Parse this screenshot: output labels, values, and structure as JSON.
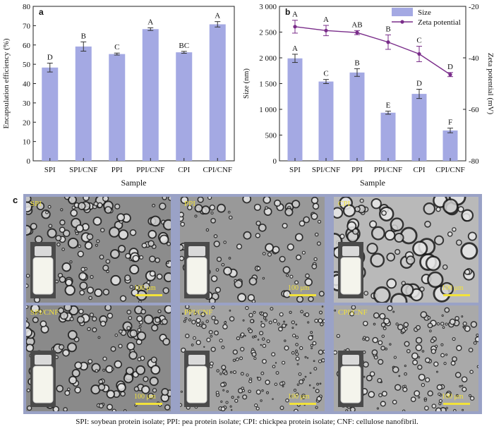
{
  "chart_data": [
    {
      "panel": "a",
      "type": "bar",
      "ylabel": "Encapsulation efficiency (%)",
      "xlabel": "Sample",
      "categories": [
        "SPI",
        "SPI/CNF",
        "PPI",
        "PPI/CNF",
        "CPI",
        "CPI/CNF"
      ],
      "values": [
        48.3,
        59.2,
        55.3,
        68.2,
        56.2,
        70.7
      ],
      "errors": [
        2.3,
        2.4,
        0.5,
        0.7,
        0.5,
        1.4
      ],
      "letters": [
        "D",
        "B",
        "C",
        "A",
        "BC",
        "A"
      ],
      "ylim": [
        0,
        80
      ],
      "yticks": [
        0,
        10,
        20,
        30,
        40,
        50,
        60,
        70,
        80
      ],
      "bar_color": "#a4a9e3"
    },
    {
      "panel": "b",
      "type": "bar+line",
      "xlabel": "Sample",
      "ylabel_left": "Size (nm)",
      "ylabel_right": "Zeta potential (mV)",
      "categories": [
        "SPI",
        "SPI/CNF",
        "PPI",
        "PPI/CNF",
        "CPI",
        "CPI/CNF"
      ],
      "size_series": {
        "name": "Size",
        "values": [
          1990,
          1540,
          1715,
          935,
          1300,
          590
        ],
        "errors": [
          80,
          40,
          75,
          30,
          90,
          45
        ],
        "letters": [
          "A",
          "C",
          "B",
          "E",
          "D",
          "F"
        ],
        "color": "#a4a9e3"
      },
      "zeta_series": {
        "name": "Zeta potential",
        "values": [
          -27.9,
          -29.4,
          -30.2,
          -33.9,
          -38.5,
          -46.5
        ],
        "errors": [
          2.5,
          2.0,
          0.8,
          2.8,
          3.0,
          0.8
        ],
        "letters": [
          "A",
          "A",
          "AB",
          "B",
          "C",
          "D"
        ],
        "color": "#7a2d8a"
      },
      "ylim_left": [
        0,
        3000
      ],
      "yticks_left": [
        "0",
        "500",
        "1 000",
        "1 500",
        "2 000",
        "2 500",
        "3 000"
      ],
      "yticks_left_values": [
        0,
        500,
        1000,
        1500,
        2000,
        2500,
        3000
      ],
      "ylim_right": [
        -80,
        -20
      ],
      "yticks_right": [
        -80,
        -60,
        -40,
        -20
      ]
    }
  ],
  "panel_labels": {
    "a": "a",
    "b": "b",
    "c": "c"
  },
  "micrographs": [
    {
      "label": "SPI",
      "scale": "100 μm"
    },
    {
      "label": "PPI",
      "scale": "100 μm"
    },
    {
      "label": "CPI",
      "scale": "100 μm"
    },
    {
      "label": "SPI/CNF",
      "scale": "100 μm"
    },
    {
      "label": "PPI/CNF",
      "scale": "100 μm"
    },
    {
      "label": "CPI/CNF",
      "scale": "100 μm"
    }
  ],
  "caption": "SPI: soybean protein isolate; PPI: pea protein isolate; CPI: chickpea protein isolate; CNF: cellulose nanofibril."
}
